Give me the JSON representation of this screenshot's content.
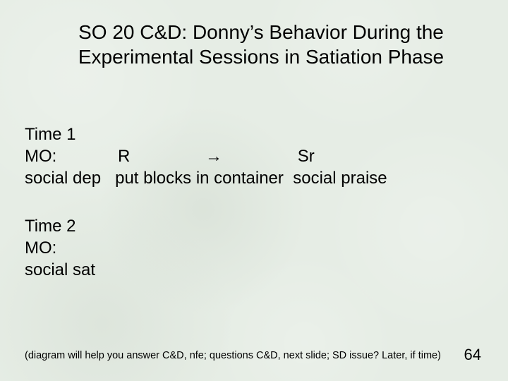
{
  "background_color": "#e6ede5",
  "text_color": "#000000",
  "title": {
    "line1": "SO 20 C&D: Donny’s Behavior During the",
    "line2": "Experimental Sessions in Satiation Phase",
    "fontsize": 28
  },
  "time1": {
    "heading": "Time 1",
    "row_labels": {
      "mo_label": "MO:",
      "r_label": "R",
      "arrow": "→",
      "sr_label": "Sr"
    },
    "row_values": {
      "mo_value": "social dep",
      "r_value": "put blocks in container",
      "sr_value": "social praise"
    },
    "fontsize": 24
  },
  "time2": {
    "heading": "Time 2",
    "mo_label": "MO:",
    "mo_value": "social sat",
    "fontsize": 24
  },
  "footnote": {
    "text": "(diagram will help you answer C&D, nfe; questions C&D, next slide; SD issue? Later, if time)",
    "fontsize": 14.5
  },
  "page_number": "64"
}
